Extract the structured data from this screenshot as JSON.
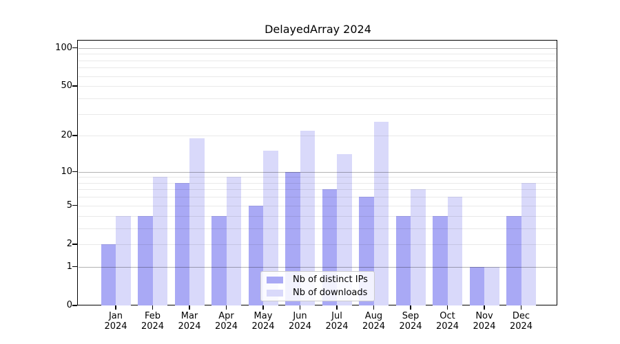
{
  "chart_data": {
    "type": "bar",
    "title": "DelayedArray 2024",
    "categories": [
      "Jan",
      "Feb",
      "Mar",
      "Apr",
      "May",
      "Jun",
      "Jul",
      "Aug",
      "Sep",
      "Oct",
      "Nov",
      "Dec"
    ],
    "x_year": "2024",
    "series": [
      {
        "name": "Nb of distinct IPs",
        "color": "#a9a9f5",
        "values": [
          2,
          4,
          8,
          4,
          5,
          10,
          7,
          6,
          4,
          4,
          1,
          4
        ]
      },
      {
        "name": "Nb of downloads",
        "color": "#d9d9fa",
        "values": [
          4,
          9,
          19,
          9,
          15,
          22,
          14,
          26,
          7,
          6,
          1,
          8
        ]
      }
    ],
    "xlabel": "",
    "ylabel": "",
    "y_scale": "log10(1+x)",
    "ylim": [
      0,
      114
    ],
    "y_ticks": [
      0,
      1,
      2,
      5,
      10,
      20,
      50,
      100
    ],
    "grid": {
      "major_lines": [
        1,
        10,
        100
      ],
      "minor_lines": [
        2,
        3,
        4,
        5,
        6,
        7,
        8,
        9,
        20,
        30,
        40,
        50,
        60,
        70,
        80,
        90
      ],
      "major_color": "#b2b2b2",
      "minor_color": "#eaeaea"
    },
    "legend_position": "lower center"
  }
}
